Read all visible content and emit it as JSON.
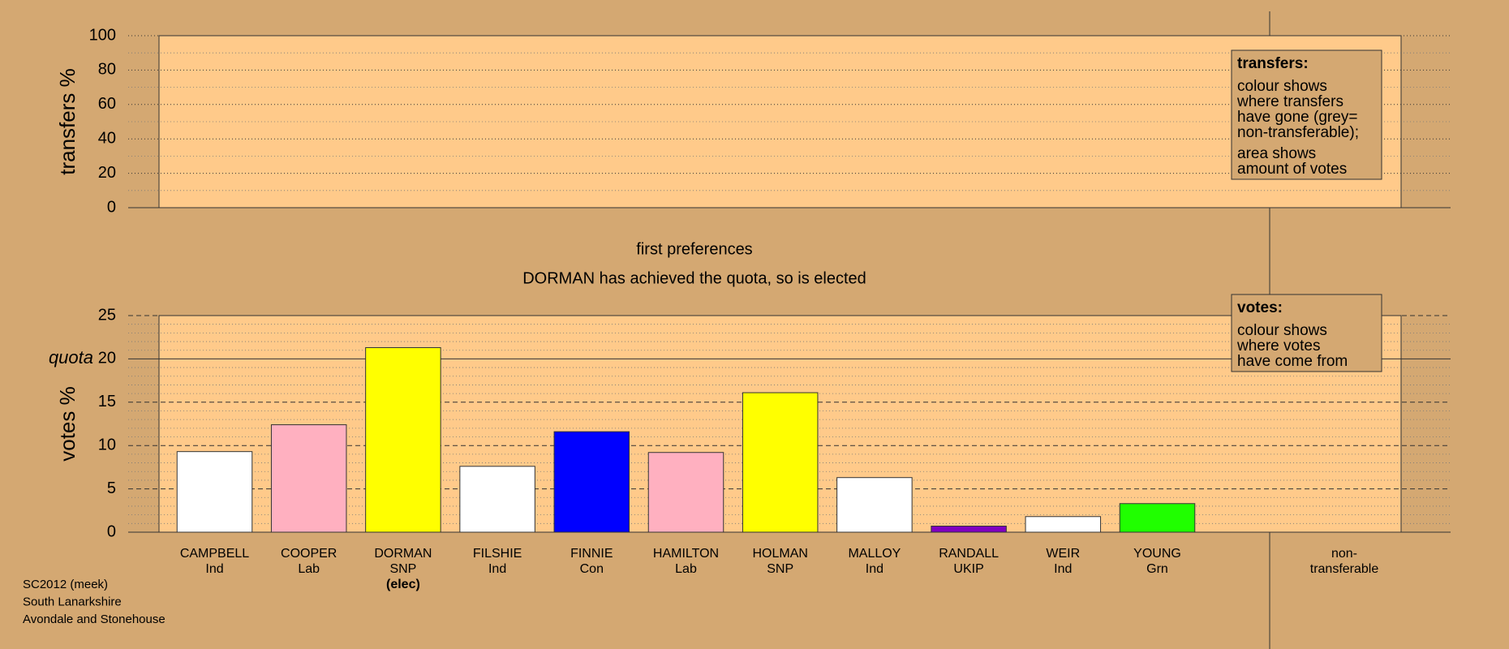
{
  "chart_data": [
    {
      "type": "area",
      "ylabel": "transfers %",
      "ylim": [
        0,
        100
      ],
      "yticks": [
        0,
        20,
        40,
        60,
        80,
        100
      ],
      "yminorticks": [
        10,
        30,
        50,
        70,
        90
      ],
      "legend": {
        "title": "transfers:",
        "paragraphs": [
          [
            "colour shows",
            "where transfers",
            "have gone (grey=",
            "non-transferable);"
          ],
          [
            "area shows",
            "amount of votes"
          ]
        ]
      }
    },
    {
      "type": "bar",
      "title": "first preferences",
      "subtitle": "DORMAN has achieved the quota, so is elected",
      "ylabel": "votes %",
      "ylim": [
        0,
        25
      ],
      "yticks": [
        0,
        5,
        10,
        15,
        20,
        25
      ],
      "yminorticks": [
        1,
        2,
        3,
        4,
        6,
        7,
        8,
        9,
        11,
        12,
        13,
        14,
        16,
        17,
        18,
        19,
        21,
        22,
        23,
        24
      ],
      "quota": {
        "value": 20,
        "label": "quota"
      },
      "categories": [
        [
          "CAMPBELL",
          "Ind"
        ],
        [
          "COOPER",
          "Lab"
        ],
        [
          "DORMAN",
          "SNP",
          "(elec)"
        ],
        [
          "FILSHIE",
          "Ind"
        ],
        [
          "FINNIE",
          "Con"
        ],
        [
          "HAMILTON",
          "Lab"
        ],
        [
          "HOLMAN",
          "SNP"
        ],
        [
          "MALLOY",
          "Ind"
        ],
        [
          "RANDALL",
          "UKIP"
        ],
        [
          "WEIR",
          "Ind"
        ],
        [
          "YOUNG",
          "Grn"
        ],
        [
          "non-",
          "transferable"
        ]
      ],
      "values": [
        9.3,
        12.4,
        21.3,
        7.6,
        11.6,
        9.2,
        16.1,
        6.3,
        0.7,
        1.8,
        3.3,
        null
      ],
      "colors": [
        "#ffffff",
        "#ffb0c0",
        "#ffff00",
        "#ffffff",
        "#0000ff",
        "#ffb0c0",
        "#ffff00",
        "#ffffff",
        "#8000c0",
        "#ffffff",
        "#20ff00",
        null
      ],
      "legend": {
        "title": "votes:",
        "paragraphs": [
          [
            "colour shows",
            "where votes",
            "have come from"
          ]
        ]
      }
    }
  ],
  "footer": [
    "SC2012 (meek)",
    "South Lanarkshire",
    "Avondale and Stonehouse"
  ]
}
